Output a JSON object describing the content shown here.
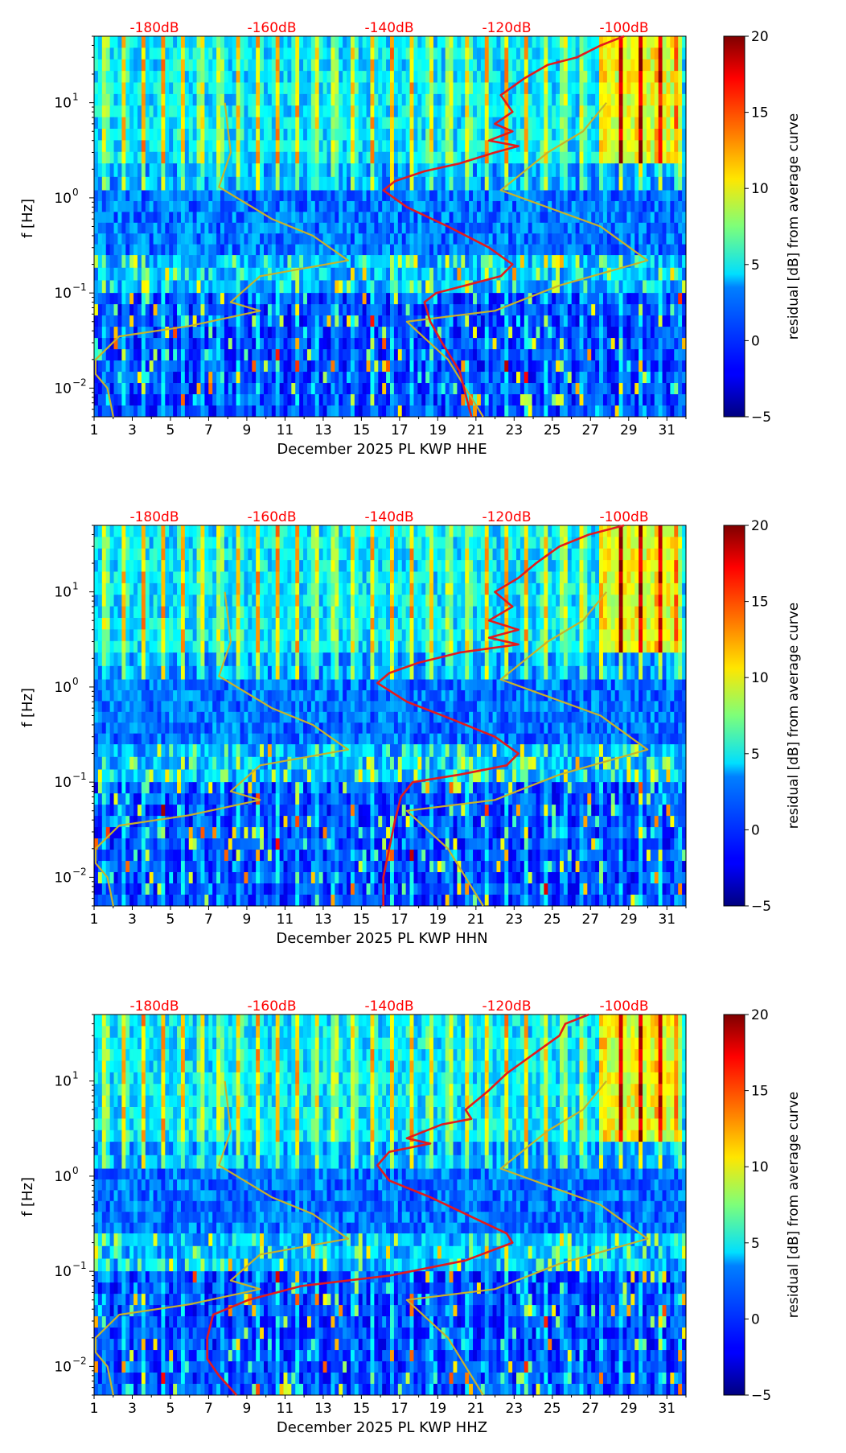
{
  "figure": {
    "top_axis_labels": [
      "-180dB",
      "-160dB",
      "-140dB",
      "-120dB",
      "-100dB"
    ],
    "x_ticks": [
      "1",
      "3",
      "5",
      "7",
      "9",
      "11",
      "13",
      "15",
      "17",
      "19",
      "21",
      "23",
      "25",
      "27",
      "29",
      "31"
    ],
    "y_label": "f [Hz]",
    "y_ticks": [
      {
        "label": "10",
        "exp": "1"
      },
      {
        "label": "10",
        "exp": "0"
      },
      {
        "label": "10",
        "exp": "−1"
      },
      {
        "label": "10",
        "exp": "−2"
      }
    ],
    "colorbar": {
      "label": "residual [dB] from average curve",
      "ticks": [
        "20",
        "15",
        "10",
        "5",
        "0",
        "−5"
      ]
    },
    "colors": {
      "red_line": "#e31a1c",
      "olive_line": "#c8b22a",
      "top_label": "#ff0000"
    }
  },
  "chart_data": [
    {
      "type": "heatmap",
      "title": "December 2025 PL KWP  HHE",
      "xlabel": "December 2025 PL KWP  HHE",
      "ylabel": "f [Hz]",
      "xlim": [
        1,
        32
      ],
      "ylim_hz": [
        0.005,
        50
      ],
      "y_scale": "log",
      "colorbar_range": [
        -5,
        20
      ],
      "red_curve": [
        {
          "db": -100,
          "f": 50
        },
        {
          "db": -104,
          "f": 40
        },
        {
          "db": -108,
          "f": 30
        },
        {
          "db": -113,
          "f": 25
        },
        {
          "db": -117,
          "f": 18
        },
        {
          "db": -121,
          "f": 12
        },
        {
          "db": -119,
          "f": 8
        },
        {
          "db": -122,
          "f": 6
        },
        {
          "db": -119,
          "f": 5
        },
        {
          "db": -123,
          "f": 4
        },
        {
          "db": -118,
          "f": 3.5
        },
        {
          "db": -122,
          "f": 3
        },
        {
          "db": -128,
          "f": 2.3
        },
        {
          "db": -134,
          "f": 1.9
        },
        {
          "db": -139,
          "f": 1.5
        },
        {
          "db": -141,
          "f": 1.2
        },
        {
          "db": -137,
          "f": 0.8
        },
        {
          "db": -130,
          "f": 0.5
        },
        {
          "db": -123,
          "f": 0.3
        },
        {
          "db": -119,
          "f": 0.2
        },
        {
          "db": -121,
          "f": 0.15
        },
        {
          "db": -127,
          "f": 0.12
        },
        {
          "db": -132,
          "f": 0.1
        },
        {
          "db": -134,
          "f": 0.08
        },
        {
          "db": -133,
          "f": 0.05
        },
        {
          "db": -131,
          "f": 0.03
        },
        {
          "db": -128,
          "f": 0.015
        },
        {
          "db": -126,
          "f": 0.005
        }
      ],
      "olive_curve": [
        {
          "db": -168,
          "f": 10
        },
        {
          "db": -167,
          "f": 3
        },
        {
          "db": -169,
          "f": 1.3
        },
        {
          "db": -160,
          "f": 0.6
        },
        {
          "db": -153,
          "f": 0.4
        },
        {
          "db": -147,
          "f": 0.22
        },
        {
          "db": -162,
          "f": 0.15
        },
        {
          "db": -167,
          "f": 0.08
        },
        {
          "db": -162,
          "f": 0.065
        },
        {
          "db": -174,
          "f": 0.045
        },
        {
          "db": -186,
          "f": 0.035
        },
        {
          "db": -190,
          "f": 0.02
        },
        {
          "db": -190,
          "f": 0.014
        },
        {
          "db": -188,
          "f": 0.01
        },
        {
          "db": -187,
          "f": 0.005
        }
      ],
      "olive_curve_2": [
        {
          "db": -103,
          "f": 10
        },
        {
          "db": -107,
          "f": 5
        },
        {
          "db": -113,
          "f": 3
        },
        {
          "db": -121,
          "f": 1.2
        },
        {
          "db": -104,
          "f": 0.5
        },
        {
          "db": -96,
          "f": 0.22
        },
        {
          "db": -111,
          "f": 0.12
        },
        {
          "db": -122,
          "f": 0.065
        },
        {
          "db": -137,
          "f": 0.05
        },
        {
          "db": -130,
          "f": 0.02
        },
        {
          "db": -124,
          "f": 0.005
        }
      ]
    },
    {
      "type": "heatmap",
      "title": "December 2025 PL KWP  HHN",
      "xlabel": "December 2025 PL KWP  HHN",
      "ylabel": "f [Hz]",
      "xlim": [
        1,
        32
      ],
      "ylim_hz": [
        0.005,
        50
      ],
      "y_scale": "log",
      "colorbar_range": [
        -5,
        20
      ],
      "red_curve": [
        {
          "db": -100,
          "f": 50
        },
        {
          "db": -106,
          "f": 40
        },
        {
          "db": -111,
          "f": 30
        },
        {
          "db": -115,
          "f": 20
        },
        {
          "db": -118,
          "f": 14
        },
        {
          "db": -122,
          "f": 10
        },
        {
          "db": -119,
          "f": 7
        },
        {
          "db": -123,
          "f": 5
        },
        {
          "db": -118,
          "f": 4
        },
        {
          "db": -123,
          "f": 3.3
        },
        {
          "db": -118,
          "f": 2.8
        },
        {
          "db": -128,
          "f": 2.3
        },
        {
          "db": -135,
          "f": 1.8
        },
        {
          "db": -140,
          "f": 1.4
        },
        {
          "db": -142,
          "f": 1.1
        },
        {
          "db": -137,
          "f": 0.7
        },
        {
          "db": -129,
          "f": 0.45
        },
        {
          "db": -122,
          "f": 0.3
        },
        {
          "db": -118,
          "f": 0.2
        },
        {
          "db": -120,
          "f": 0.15
        },
        {
          "db": -128,
          "f": 0.12
        },
        {
          "db": -136,
          "f": 0.1
        },
        {
          "db": -138,
          "f": 0.07
        },
        {
          "db": -139,
          "f": 0.04
        },
        {
          "db": -140,
          "f": 0.02
        },
        {
          "db": -141,
          "f": 0.01
        },
        {
          "db": -141,
          "f": 0.005
        }
      ],
      "olive_curve": [
        {
          "db": -168,
          "f": 10
        },
        {
          "db": -167,
          "f": 3
        },
        {
          "db": -169,
          "f": 1.3
        },
        {
          "db": -160,
          "f": 0.6
        },
        {
          "db": -153,
          "f": 0.4
        },
        {
          "db": -147,
          "f": 0.22
        },
        {
          "db": -162,
          "f": 0.15
        },
        {
          "db": -167,
          "f": 0.08
        },
        {
          "db": -162,
          "f": 0.065
        },
        {
          "db": -174,
          "f": 0.045
        },
        {
          "db": -186,
          "f": 0.035
        },
        {
          "db": -190,
          "f": 0.02
        },
        {
          "db": -190,
          "f": 0.014
        },
        {
          "db": -188,
          "f": 0.01
        },
        {
          "db": -187,
          "f": 0.005
        }
      ],
      "olive_curve_2": [
        {
          "db": -103,
          "f": 10
        },
        {
          "db": -107,
          "f": 5
        },
        {
          "db": -113,
          "f": 3
        },
        {
          "db": -121,
          "f": 1.2
        },
        {
          "db": -104,
          "f": 0.5
        },
        {
          "db": -96,
          "f": 0.22
        },
        {
          "db": -111,
          "f": 0.12
        },
        {
          "db": -122,
          "f": 0.065
        },
        {
          "db": -137,
          "f": 0.05
        },
        {
          "db": -130,
          "f": 0.02
        },
        {
          "db": -124,
          "f": 0.005
        }
      ]
    },
    {
      "type": "heatmap",
      "title": "December 2025 PL KWP  HHZ",
      "xlabel": "December 2025 PL KWP  HHZ",
      "ylabel": "f [Hz]",
      "xlim": [
        1,
        32
      ],
      "ylim_hz": [
        0.005,
        50
      ],
      "y_scale": "log",
      "colorbar_range": [
        -5,
        20
      ],
      "red_curve": [
        {
          "db": -106,
          "f": 50
        },
        {
          "db": -110,
          "f": 40
        },
        {
          "db": -111,
          "f": 30
        },
        {
          "db": -115,
          "f": 20
        },
        {
          "db": -120,
          "f": 12
        },
        {
          "db": -123,
          "f": 8
        },
        {
          "db": -127,
          "f": 5
        },
        {
          "db": -126,
          "f": 4
        },
        {
          "db": -131,
          "f": 3.5
        },
        {
          "db": -137,
          "f": 2.5
        },
        {
          "db": -133,
          "f": 2.2
        },
        {
          "db": -140,
          "f": 1.8
        },
        {
          "db": -142,
          "f": 1.3
        },
        {
          "db": -140,
          "f": 0.9
        },
        {
          "db": -133,
          "f": 0.6
        },
        {
          "db": -125,
          "f": 0.35
        },
        {
          "db": -120,
          "f": 0.25
        },
        {
          "db": -119,
          "f": 0.2
        },
        {
          "db": -127,
          "f": 0.13
        },
        {
          "db": -140,
          "f": 0.09
        },
        {
          "db": -155,
          "f": 0.07
        },
        {
          "db": -164,
          "f": 0.05
        },
        {
          "db": -170,
          "f": 0.035
        },
        {
          "db": -171,
          "f": 0.02
        },
        {
          "db": -171,
          "f": 0.012
        },
        {
          "db": -169,
          "f": 0.008
        },
        {
          "db": -166,
          "f": 0.005
        }
      ],
      "olive_curve": [
        {
          "db": -168,
          "f": 10
        },
        {
          "db": -167,
          "f": 3
        },
        {
          "db": -169,
          "f": 1.3
        },
        {
          "db": -160,
          "f": 0.6
        },
        {
          "db": -153,
          "f": 0.4
        },
        {
          "db": -147,
          "f": 0.22
        },
        {
          "db": -162,
          "f": 0.15
        },
        {
          "db": -167,
          "f": 0.08
        },
        {
          "db": -162,
          "f": 0.065
        },
        {
          "db": -174,
          "f": 0.045
        },
        {
          "db": -186,
          "f": 0.035
        },
        {
          "db": -190,
          "f": 0.02
        },
        {
          "db": -190,
          "f": 0.014
        },
        {
          "db": -188,
          "f": 0.01
        },
        {
          "db": -187,
          "f": 0.005
        }
      ],
      "olive_curve_2": [
        {
          "db": -103,
          "f": 10
        },
        {
          "db": -107,
          "f": 5
        },
        {
          "db": -113,
          "f": 3
        },
        {
          "db": -121,
          "f": 1.2
        },
        {
          "db": -104,
          "f": 0.5
        },
        {
          "db": -96,
          "f": 0.22
        },
        {
          "db": -111,
          "f": 0.12
        },
        {
          "db": -122,
          "f": 0.065
        },
        {
          "db": -137,
          "f": 0.05
        },
        {
          "db": -130,
          "f": 0.02
        },
        {
          "db": -124,
          "f": 0.005
        }
      ]
    }
  ]
}
